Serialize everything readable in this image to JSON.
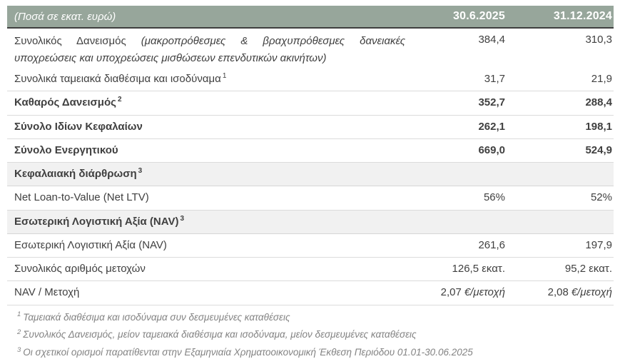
{
  "colors": {
    "header_bg": "#97A69B",
    "header_text": "#FFFFFF",
    "section_bg": "#F1F1F1",
    "body_text": "#404040",
    "footnote_text": "#838383",
    "row_divider": "#DBDBDB",
    "header_rule": "#3F3F3F"
  },
  "header": {
    "unit_note": "(Ποσά σε εκατ. ευρώ)",
    "col1": "30.6.2025",
    "col2": "31.12.2024"
  },
  "table": {
    "rows": [
      {
        "label": "Συνολικός Δανεισμός",
        "label_italic": "(μακροπρόθεσμες & βραχυπρόθεσμες δανειακές υποχρεώσεις και υποχρεώσεις μισθώσεων επενδυτικών ακινήτων)",
        "v1": "384,4",
        "v2": "310,3"
      },
      {
        "label": "Συνολικά ταμειακά διαθέσιμα και ισοδύναμα",
        "sup": "1",
        "v1": "31,7",
        "v2": "21,9"
      },
      {
        "label": "Καθαρός Δανεισμός",
        "sup": "2",
        "v1": "352,7",
        "v2": "288,4"
      },
      {
        "label": "Σύνολο Ιδίων Κεφαλαίων",
        "v1": "262,1",
        "v2": "198,1"
      },
      {
        "label": "Σύνολο Ενεργητικού",
        "v1": "669,0",
        "v2": "524,9"
      },
      {
        "label": "Κεφαλαιακή διάρθρωση",
        "sup": "3"
      },
      {
        "label": "Net Loan-to-Value (Net LTV)",
        "v1": "56%",
        "v2": "52%"
      },
      {
        "label": "Εσωτερική Λογιστική Αξία (NAV)",
        "sup": "3"
      },
      {
        "label": "Εσωτερική Λογιστική Αξία (NAV)",
        "v1": "261,6",
        "v2": "197,9"
      },
      {
        "label": "Συνολικός αριθμός μετοχών",
        "v1": "126,5 εκατ.",
        "v2": "95,2 εκατ."
      },
      {
        "label": "NAV / Μετοχή",
        "v1": "2,07",
        "v1_unit": "€/μετοχή",
        "v2": "2,08",
        "v2_unit": "€/μετοχή"
      }
    ]
  },
  "footnotes": [
    {
      "sup": "1",
      "text": "Ταμειακά διαθέσιμα και ισοδύναμα συν δεσμευμένες καταθέσεις"
    },
    {
      "sup": "2",
      "text": "Συνολικός Δανεισμός, μείον ταμειακά διαθέσιμα και ισοδύναμα, μείον δεσμευμένες καταθέσεις"
    },
    {
      "sup": "3",
      "text": "Οι σχετικοί ορισμοί παρατίθενται στην Εξαμηνιαία Χρηματοοικονομική Έκθεση Περιόδου 01.01-30.06.2025"
    }
  ]
}
